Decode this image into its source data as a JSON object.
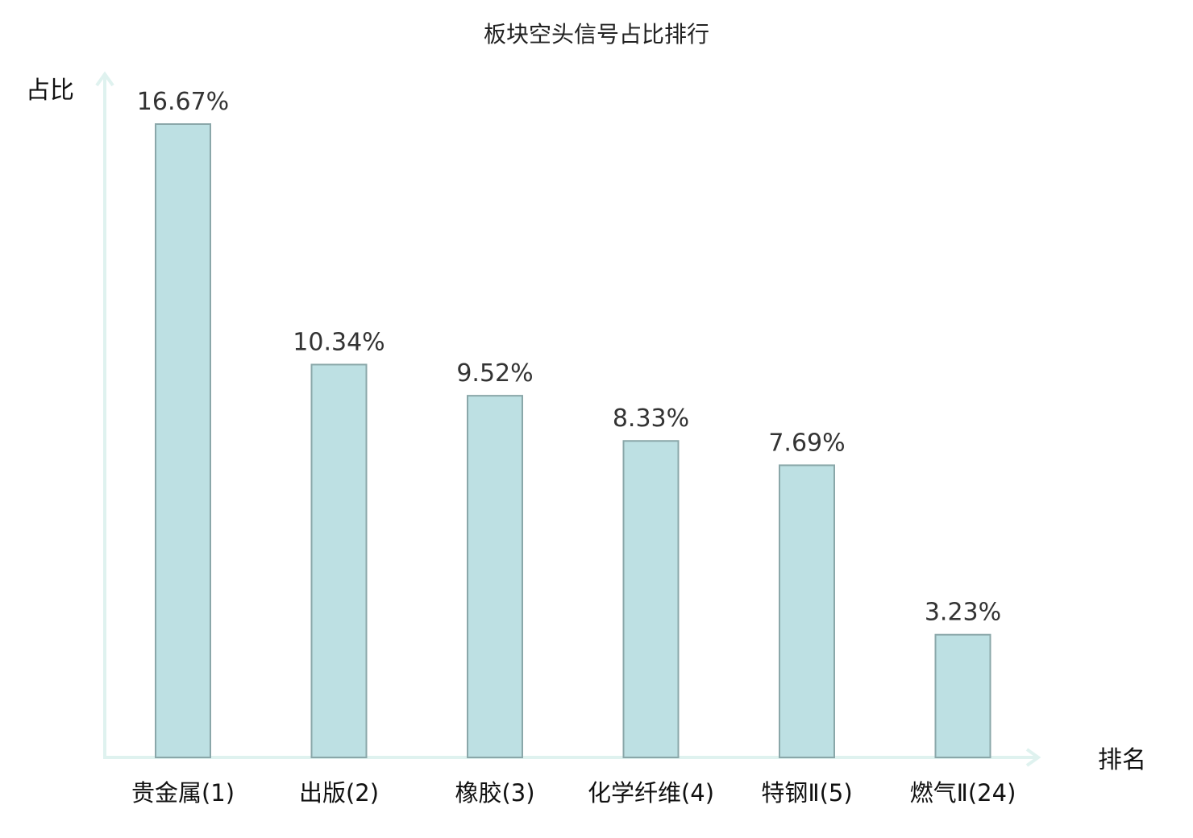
{
  "chart_data": {
    "type": "bar",
    "title": "板块空头信号占比排行",
    "ylabel": "占比",
    "xlabel": "排名",
    "categories": [
      "贵金属(1)",
      "出版(2)",
      "橡胶(3)",
      "化学纤维(4)",
      "特钢Ⅱ(5)",
      "燃气Ⅱ(24)"
    ],
    "values": [
      16.67,
      10.34,
      9.52,
      8.33,
      7.69,
      3.23
    ],
    "value_labels": [
      "16.67%",
      "10.34%",
      "9.52%",
      "8.33%",
      "7.69%",
      "3.23%"
    ],
    "highlight_index": 5,
    "ylim": [
      0,
      16.67
    ],
    "grid": false,
    "colors": {
      "bar_fill": "#bde0e3",
      "bar_stroke": "#8aa7a9",
      "axis": "#dff2ef",
      "highlight_text": "#e0201e",
      "text": "#111111"
    }
  }
}
